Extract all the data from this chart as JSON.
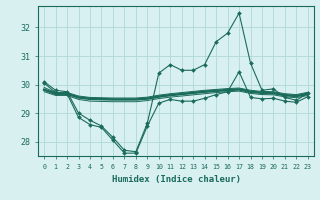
{
  "x": [
    0,
    1,
    2,
    3,
    4,
    5,
    6,
    7,
    8,
    9,
    10,
    11,
    12,
    13,
    14,
    15,
    16,
    17,
    18,
    19,
    20,
    21,
    22,
    23
  ],
  "line_high": [
    30.1,
    29.8,
    29.75,
    29.0,
    28.75,
    28.55,
    28.15,
    27.7,
    27.65,
    28.65,
    30.4,
    30.7,
    30.5,
    30.5,
    30.7,
    31.5,
    31.8,
    32.5,
    30.75,
    29.8,
    29.85,
    29.55,
    29.45,
    29.7
  ],
  "line_upper_band": [
    29.9,
    29.72,
    29.72,
    29.6,
    29.55,
    29.54,
    29.53,
    29.53,
    29.53,
    29.56,
    29.63,
    29.68,
    29.72,
    29.76,
    29.8,
    29.83,
    29.86,
    29.88,
    29.8,
    29.76,
    29.75,
    29.68,
    29.65,
    29.73
  ],
  "line_mean": [
    29.82,
    29.68,
    29.68,
    29.55,
    29.5,
    29.49,
    29.48,
    29.48,
    29.48,
    29.51,
    29.58,
    29.63,
    29.67,
    29.71,
    29.75,
    29.78,
    29.81,
    29.83,
    29.75,
    29.71,
    29.7,
    29.63,
    29.6,
    29.68
  ],
  "line_lower_band": [
    29.75,
    29.62,
    29.62,
    29.48,
    29.42,
    29.41,
    29.4,
    29.4,
    29.4,
    29.44,
    29.51,
    29.56,
    29.6,
    29.64,
    29.68,
    29.72,
    29.75,
    29.77,
    29.69,
    29.65,
    29.64,
    29.57,
    29.54,
    29.62
  ],
  "line_low": [
    30.05,
    29.72,
    29.68,
    28.85,
    28.6,
    28.5,
    28.05,
    27.6,
    27.6,
    28.55,
    29.35,
    29.48,
    29.42,
    29.42,
    29.52,
    29.65,
    29.75,
    30.45,
    29.55,
    29.5,
    29.52,
    29.42,
    29.38,
    29.58
  ],
  "color": "#1a6b5a",
  "bg_color": "#d8f0f0",
  "grid_color": "#b0d8d8",
  "xlabel": "Humidex (Indice chaleur)",
  "ylim": [
    27.5,
    32.75
  ],
  "yticks": [
    28,
    29,
    30,
    31,
    32
  ],
  "xticks": [
    0,
    1,
    2,
    3,
    4,
    5,
    6,
    7,
    8,
    9,
    10,
    11,
    12,
    13,
    14,
    15,
    16,
    17,
    18,
    19,
    20,
    21,
    22,
    23
  ]
}
